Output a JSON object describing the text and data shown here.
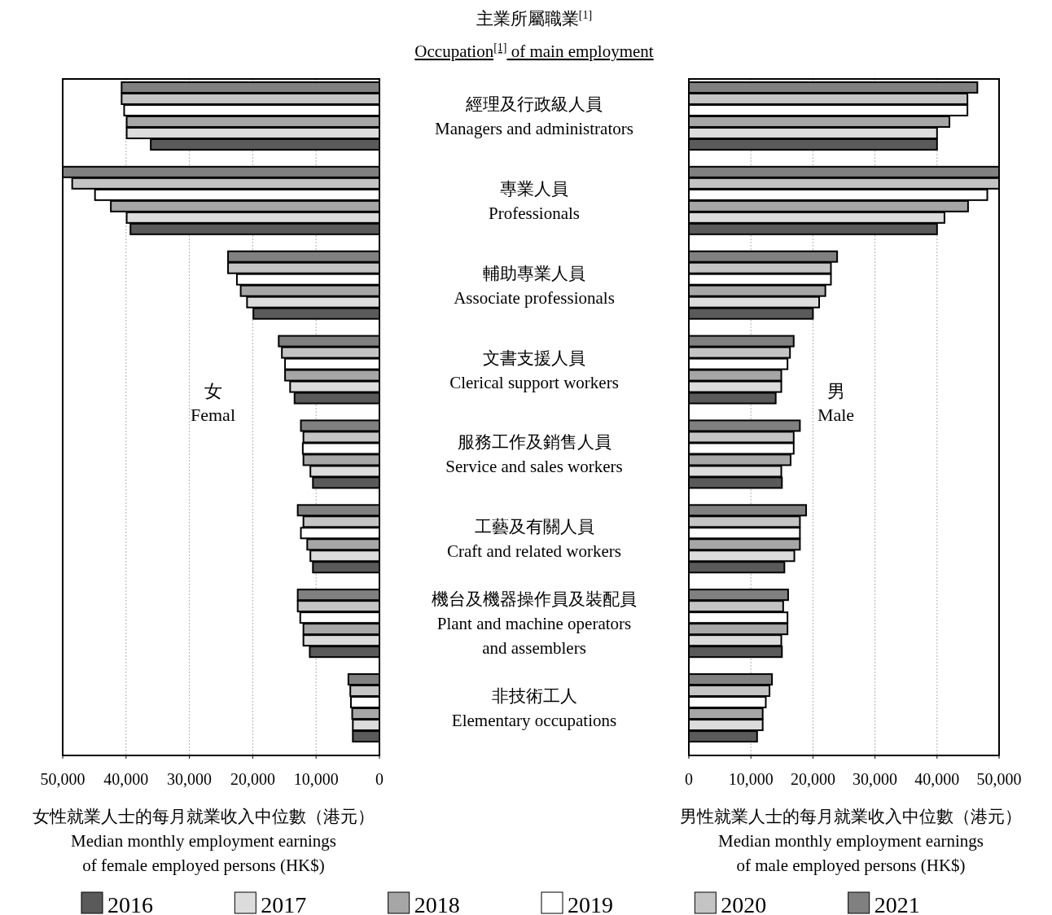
{
  "chart_data": [
    {
      "type": "bar",
      "orientation": "horizontal",
      "categories": [
        null,
        null,
        null,
        null,
        null,
        null,
        null,
        null
      ],
      "series": [
        {
          "name": "2021",
          "color": "#808080",
          "values": [
            40700,
            50000,
            23900,
            15900,
            12400,
            12900,
            12900,
            4900
          ]
        },
        {
          "name": "2020",
          "color": "#c4c4c4",
          "values": [
            40700,
            48500,
            23900,
            15400,
            12000,
            12000,
            12900,
            4600
          ]
        },
        {
          "name": "2019",
          "color": "#ffffff",
          "values": [
            40300,
            44900,
            22500,
            14900,
            12100,
            12400,
            12500,
            4500
          ]
        },
        {
          "name": "2018",
          "color": "#a6a6a6",
          "values": [
            39900,
            42400,
            21900,
            14900,
            12000,
            11400,
            12000,
            4300
          ]
        },
        {
          "name": "2017",
          "color": "#dcdcdc",
          "values": [
            39900,
            39900,
            20900,
            14100,
            10900,
            10900,
            12000,
            4200
          ]
        },
        {
          "name": "2016",
          "color": "#5a5a5a",
          "values": [
            36100,
            39300,
            19900,
            13400,
            10500,
            10500,
            11000,
            4200
          ]
        }
      ],
      "xlim": [
        50000,
        0
      ],
      "xticks": [
        {
          "value": 50000,
          "label": "50,000"
        },
        {
          "value": 40000,
          "label": "40,000"
        },
        {
          "value": 30000,
          "label": "30,000"
        },
        {
          "value": 20000,
          "label": "20,000"
        },
        {
          "value": 10000,
          "label": "10,000"
        },
        0
      ],
      "xlabel": "女性就業人士的每月就業收入中位數（港元）\nMedian monthly employment earnings\nof female employed persons (HK$)",
      "annotations": [
        "女\nFemal"
      ],
      "grid": "x",
      "tick_labels": "x",
      "legend": "bottom"
    },
    {
      "type": "bar",
      "orientation": "horizontal",
      "title": "主業所屬職業$^{[1]}$",
      "subtitle": "Occupation$^{[1]}$ of main employment",
      "categories": [
        "經理及行政級人員\nManagers and administrators",
        "專業人員\nProfessionals",
        "輔助專業人員\nAssociate professionals",
        "文書支援人員\nClerical support workers",
        "服務工作及銷售人員\nService and sales workers",
        "工藝及有關人員\nCraft and related workers",
        "機台及機器操作員及裝配員\nPlant and machine operators\nand assemblers",
        "非技術工人\nElementary occupations"
      ],
      "series": [
        {
          "color": "#808080",
          "values": [
            46500,
            50000,
            23900,
            16900,
            17900,
            18900,
            16000,
            13400
          ]
        },
        {
          "color": "#c4c4c4",
          "values": [
            44900,
            50000,
            22900,
            16300,
            16900,
            17900,
            15200,
            13000
          ]
        },
        {
          "color": "#ffffff",
          "values": [
            44900,
            48100,
            22900,
            15900,
            16900,
            17900,
            15900,
            12400
          ]
        },
        {
          "color": "#a6a6a6",
          "values": [
            42000,
            45000,
            22000,
            14900,
            16400,
            17900,
            15900,
            11900
          ]
        },
        {
          "color": "#dcdcdc",
          "values": [
            40000,
            41200,
            21000,
            14900,
            14900,
            17000,
            14900,
            11900
          ]
        },
        {
          "color": "#5a5a5a",
          "values": [
            40000,
            40000,
            20000,
            14000,
            15000,
            15400,
            15000,
            11000
          ]
        }
      ],
      "xlim": [
        0,
        50000
      ],
      "xticks": [
        0,
        {
          "value": 10000,
          "label": "10,000"
        },
        {
          "value": 20000,
          "label": "20,000"
        },
        {
          "value": 30000,
          "label": "30,000"
        },
        {
          "value": 40000,
          "label": "40,000"
        },
        {
          "value": 50000,
          "label": "50,000"
        }
      ],
      "xlabel": "男性就業人士的每月就業收入中位數（港元）\nMedian monthly employment earnings\nof male employed persons (HK$)",
      "annotations": [
        "男\nMale"
      ],
      "grid": "x"
    }
  ]
}
